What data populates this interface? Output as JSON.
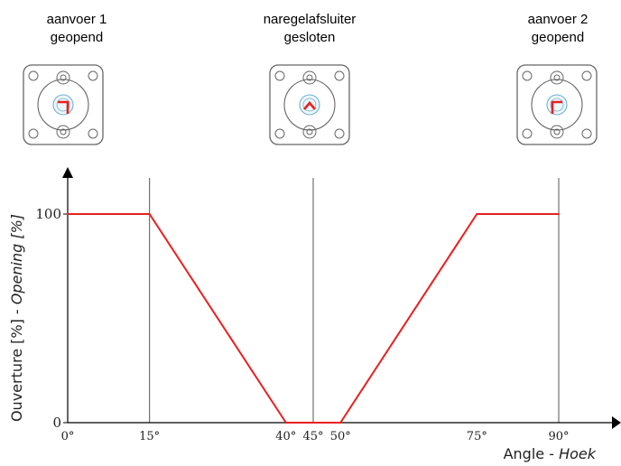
{
  "states": [
    {
      "line1": "aanvoer 1",
      "line2": "geopend"
    },
    {
      "line1": "naregelafsluiter",
      "line2": "gesloten"
    },
    {
      "line1": "aanvoer 2",
      "line2": "geopend"
    }
  ],
  "colors": {
    "curve": "#e8201f",
    "axis": "#000000",
    "grid": "#555555",
    "valve_body": "#666666",
    "valve_center": "#6fb3d2"
  },
  "chart_data": {
    "type": "line",
    "x": [
      0,
      15,
      40,
      50,
      75,
      90
    ],
    "values": [
      100,
      100,
      0,
      0,
      100,
      100
    ],
    "xlim": [
      0,
      90
    ],
    "ylim": [
      0,
      100
    ],
    "x_ticks": [
      {
        "value": 0,
        "label": "0°"
      },
      {
        "value": 15,
        "label": "15°"
      },
      {
        "value": 40,
        "label": "40°"
      },
      {
        "value": 45,
        "label": "45°"
      },
      {
        "value": 50,
        "label": "50°"
      },
      {
        "value": 75,
        "label": "75°"
      },
      {
        "value": 90,
        "label": "90°"
      }
    ],
    "y_ticks": [
      {
        "value": 0,
        "label": "0"
      },
      {
        "value": 100,
        "label": "100"
      }
    ],
    "vertical_lines": [
      15,
      45,
      90
    ],
    "xlabel_main": "Angle - ",
    "xlabel_italic": "Hoek",
    "ylabel_main": "Ouverture [%] - ",
    "ylabel_italic": "Opening [%]"
  }
}
